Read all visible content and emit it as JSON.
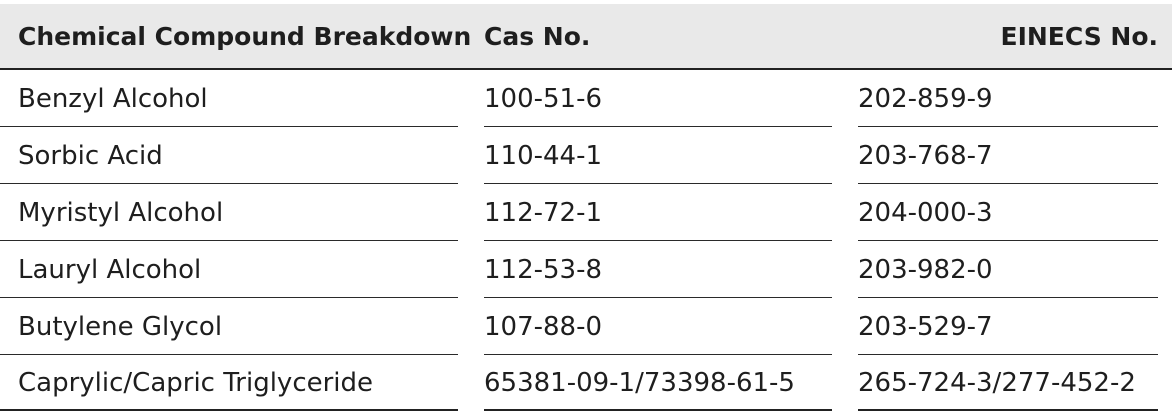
{
  "table": {
    "headers": {
      "compound": "Chemical Compound Breakdown",
      "cas": "Cas No.",
      "einecs": "EINECS No."
    },
    "rows": [
      {
        "compound": "Benzyl Alcohol",
        "cas": "100-51-6",
        "einecs": "202-859-9"
      },
      {
        "compound": "Sorbic Acid",
        "cas": "110-44-1",
        "einecs": "203-768-7"
      },
      {
        "compound": "Myristyl Alcohol",
        "cas": "112-72-1",
        "einecs": "204-000-3"
      },
      {
        "compound": "Lauryl Alcohol",
        "cas": "112-53-8",
        "einecs": "203-982-0"
      },
      {
        "compound": "Butylene Glycol",
        "cas": "107-88-0",
        "einecs": "203-529-7"
      },
      {
        "compound": "Caprylic/Capric Triglyceride",
        "cas": "65381-09-1/73398-61-5",
        "einecs": "265-724-3/277-452-2"
      }
    ]
  },
  "colors": {
    "header_background": "#e9e9e9",
    "text": "#1e1e1e",
    "rule": "#222222"
  }
}
